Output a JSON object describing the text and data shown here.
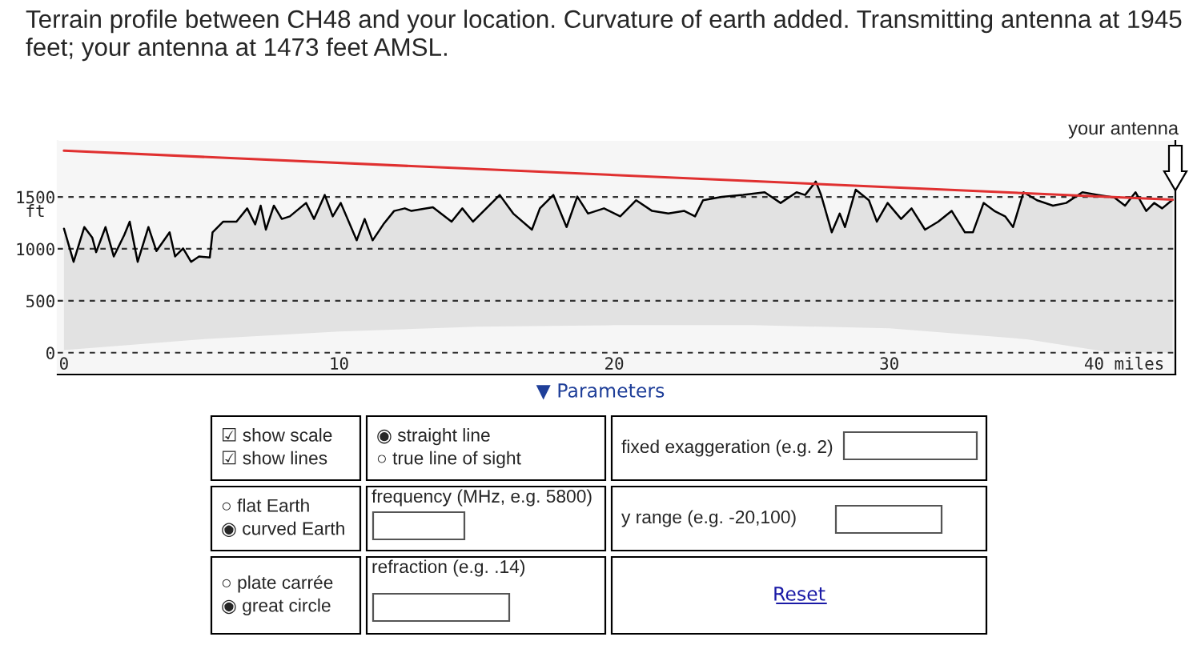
{
  "chart_data": {
    "type": "area",
    "title": "Terrain profile between CH48 and your location. Curvature of earth added. Transmitting antenna at 1945 feet; your antenna at 1473 feet AMSL.",
    "ylabel": "ft",
    "series": [
      {
        "color": "#e2e2e2",
        "x": [
          0,
          0.35,
          0.74,
          1.03,
          1.17,
          1.51,
          1.81,
          2.19,
          2.39,
          2.68,
          3.07,
          3.36,
          3.84,
          4.04,
          4.33,
          4.62,
          4.91,
          5.3,
          5.4,
          5.79,
          6.27,
          6.66,
          6.95,
          7.15,
          7.34,
          7.63,
          7.92,
          8.21,
          8.8,
          9.09,
          9.48,
          9.77,
          10.06,
          10.64,
          10.93,
          11.22,
          11.61,
          12.0,
          12.39,
          12.63,
          13.41,
          14.09,
          14.48,
          14.87,
          15.84,
          16.33,
          17.01,
          17.3,
          17.79,
          18.27,
          18.66,
          19.05,
          19.63,
          20.22,
          20.8,
          21.38,
          21.97,
          22.55,
          22.94,
          23.23,
          23.91,
          24.69,
          25.47,
          26.05,
          26.63,
          26.94,
          27.33,
          27.52,
          27.91,
          28.2,
          28.39,
          28.78,
          29.26,
          29.55,
          29.94,
          30.43,
          30.81,
          31.3,
          31.78,
          32.27,
          32.75,
          33.04,
          33.43,
          33.82,
          34.21,
          34.5,
          34.88,
          35.37,
          35.95,
          36.43,
          37.02,
          37.6,
          38.18,
          38.57,
          38.95,
          39.34,
          39.63,
          39.92,
          40.3
        ],
        "values": [
          1195,
          875,
          1210,
          1107,
          968,
          1210,
          927,
          1133,
          1262,
          875,
          1210,
          979,
          1159,
          927,
          1004,
          875,
          927,
          917,
          1159,
          1262,
          1262,
          1390,
          1236,
          1416,
          1185,
          1416,
          1288,
          1313,
          1442,
          1288,
          1519,
          1313,
          1442,
          1082,
          1288,
          1082,
          1236,
          1365,
          1390,
          1365,
          1400,
          1262,
          1390,
          1262,
          1519,
          1340,
          1185,
          1390,
          1519,
          1210,
          1504,
          1340,
          1390,
          1313,
          1468,
          1365,
          1340,
          1365,
          1313,
          1468,
          1500,
          1519,
          1545,
          1442,
          1545,
          1519,
          1648,
          1520,
          1159,
          1340,
          1210,
          1570,
          1468,
          1262,
          1442,
          1288,
          1390,
          1185,
          1262,
          1365,
          1159,
          1159,
          1442,
          1365,
          1313,
          1210,
          1545,
          1468,
          1416,
          1442,
          1545,
          1519,
          1494,
          1416,
          1545,
          1365,
          1442,
          1390,
          1473
        ]
      },
      {
        "type": "area",
        "color": "#f6f6f6",
        "x": [
          0,
          5,
          10,
          15,
          20,
          25,
          30,
          35,
          40.3
        ],
        "values": [
          25,
          130,
          205,
          250,
          265,
          265,
          235,
          130,
          -90
        ]
      },
      {
        "type": "line",
        "color": "#e03030",
        "x": [
          0,
          40.3
        ],
        "values": [
          1945,
          1473
        ]
      }
    ],
    "xlim": [
      -0.23,
      40.4
    ],
    "ylim": [
      -210,
      2040
    ],
    "xticks": [
      0,
      10,
      20,
      30,
      {
        "value": 40,
        "label": "40 miles"
      }
    ],
    "yticks": [
      0,
      500,
      1000,
      1500
    ],
    "grid": "y",
    "annotations": [
      "your antenna",
      "▼ Parameters",
      "☑ show scale\n☑ show lines",
      "◉ straight line\n○ true line of sight",
      "fixed exaggeration (e.g. 2)",
      "○ flat Earth\n◉ curved Earth",
      "frequency (MHz, e.g. 5800)",
      "y range (e.g. -20,100)",
      "○ plate carrée\n◉ great circle",
      "refraction (e.g. .14)",
      "Reset"
    ]
  }
}
